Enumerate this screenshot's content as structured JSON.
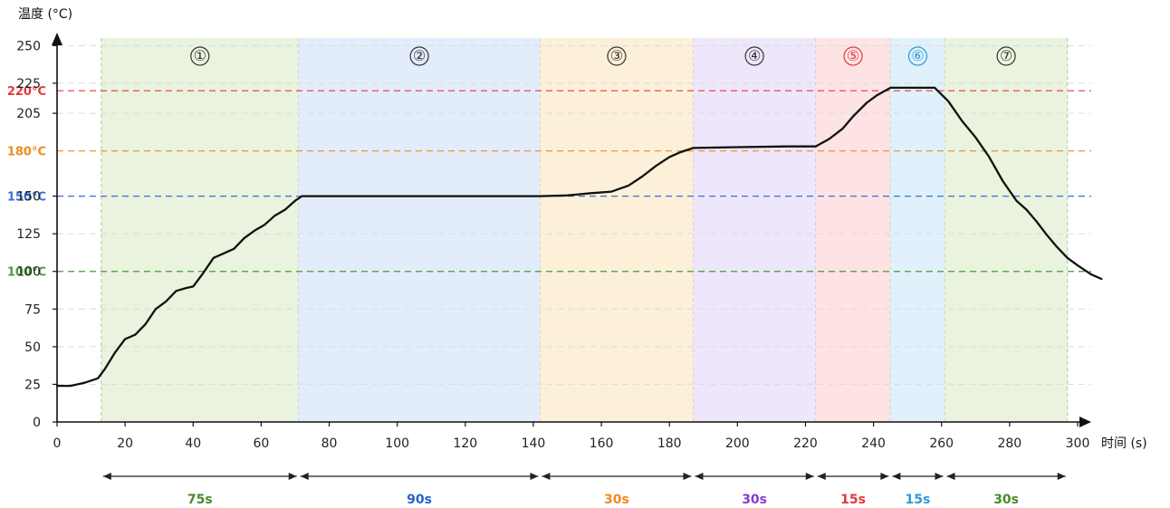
{
  "chart_data": {
    "type": "line",
    "ylabel": "温度 (°C)",
    "xlabel": "时间 (s)",
    "xlim": [
      0,
      300
    ],
    "ylim": [
      0,
      255
    ],
    "x_ticks": [
      0,
      20,
      40,
      60,
      80,
      100,
      120,
      140,
      160,
      180,
      200,
      220,
      240,
      260,
      280,
      300
    ],
    "y_ticks": [
      {
        "value": 0,
        "label": "0"
      },
      {
        "value": 25,
        "label": "25"
      },
      {
        "value": 50,
        "label": "50"
      },
      {
        "value": 75,
        "label": "75"
      },
      {
        "value": 100,
        "label": "100"
      },
      {
        "value": 125,
        "label": "125"
      },
      {
        "value": 150,
        "label": "150"
      },
      {
        "value": 205,
        "label": "205"
      },
      {
        "value": 225,
        "label": "225"
      },
      {
        "value": 250,
        "label": "250"
      }
    ],
    "reference_lines": [
      {
        "value": 220,
        "label": "220°C",
        "color": "#e03a3a"
      },
      {
        "value": 180,
        "label": "180°C",
        "color": "#f08a1e"
      },
      {
        "value": 150,
        "label": "150°C",
        "color": "#3a6fe0"
      },
      {
        "value": 100,
        "label": "100°C",
        "color": "#4a9a3a"
      }
    ],
    "phases": [
      {
        "label": "①",
        "start": 13,
        "end": 71,
        "duration": "75s",
        "fill": "#e9f3dd",
        "color": "#4a8a2a",
        "num_color": "#333333"
      },
      {
        "label": "②",
        "start": 71,
        "end": 142,
        "duration": "90s",
        "fill": "#e3ecfb",
        "color": "#2a5fd0",
        "num_color": "#333333"
      },
      {
        "label": "③",
        "start": 142,
        "end": 187,
        "duration": "30s",
        "fill": "#fdf0d8",
        "color": "#f08a1e",
        "num_color": "#333333"
      },
      {
        "label": "④",
        "start": 187,
        "end": 223,
        "duration": "30s",
        "fill": "#eee6fa",
        "color": "#8a3ad0",
        "num_color": "#333333"
      },
      {
        "label": "⑤",
        "start": 223,
        "end": 245,
        "duration": "15s",
        "fill": "#fde3e3",
        "color": "#e03a3a",
        "num_color": "#e03a3a"
      },
      {
        "label": "⑥",
        "start": 245,
        "end": 261,
        "duration": "15s",
        "fill": "#e0f1fb",
        "color": "#2a9ad8",
        "num_color": "#2a9ad8"
      },
      {
        "label": "⑦",
        "start": 261,
        "end": 297,
        "duration": "30s",
        "fill": "#e9f3dd",
        "color": "#4a8a2a",
        "num_color": "#333333"
      }
    ],
    "series": [
      {
        "points": [
          [
            0,
            24
          ],
          [
            4,
            24
          ],
          [
            8,
            26
          ],
          [
            12,
            29
          ],
          [
            14,
            35
          ],
          [
            17,
            46
          ],
          [
            20,
            55
          ],
          [
            23,
            58
          ],
          [
            26,
            65
          ],
          [
            29,
            75
          ],
          [
            32,
            80
          ],
          [
            35,
            87
          ],
          [
            38,
            89
          ],
          [
            40,
            90
          ],
          [
            43,
            99
          ],
          [
            46,
            109
          ],
          [
            49,
            112
          ],
          [
            52,
            115
          ],
          [
            55,
            122
          ],
          [
            58,
            127
          ],
          [
            61,
            131
          ],
          [
            64,
            137
          ],
          [
            67,
            141
          ],
          [
            70,
            147
          ],
          [
            72,
            150
          ],
          [
            90,
            150
          ],
          [
            110,
            150
          ],
          [
            130,
            150
          ],
          [
            142,
            150
          ],
          [
            150,
            150.5
          ],
          [
            157,
            152
          ],
          [
            163,
            153
          ],
          [
            168,
            157
          ],
          [
            172,
            163
          ],
          [
            176,
            170
          ],
          [
            180,
            176
          ],
          [
            183,
            179
          ],
          [
            187,
            182
          ],
          [
            200,
            182.5
          ],
          [
            215,
            183
          ],
          [
            223,
            183
          ],
          [
            227,
            188
          ],
          [
            231,
            195
          ],
          [
            234,
            203
          ],
          [
            238,
            212
          ],
          [
            241,
            217
          ],
          [
            245,
            222
          ],
          [
            252,
            222
          ],
          [
            258,
            222
          ],
          [
            262,
            213
          ],
          [
            266,
            200
          ],
          [
            270,
            189
          ],
          [
            274,
            176
          ],
          [
            278,
            160
          ],
          [
            282,
            147
          ],
          [
            285,
            141
          ],
          [
            288,
            133
          ],
          [
            291,
            124
          ],
          [
            294,
            116
          ],
          [
            297,
            109
          ],
          [
            300,
            104
          ],
          [
            304,
            98
          ],
          [
            307,
            95
          ]
        ],
        "color": "#111111"
      }
    ]
  }
}
